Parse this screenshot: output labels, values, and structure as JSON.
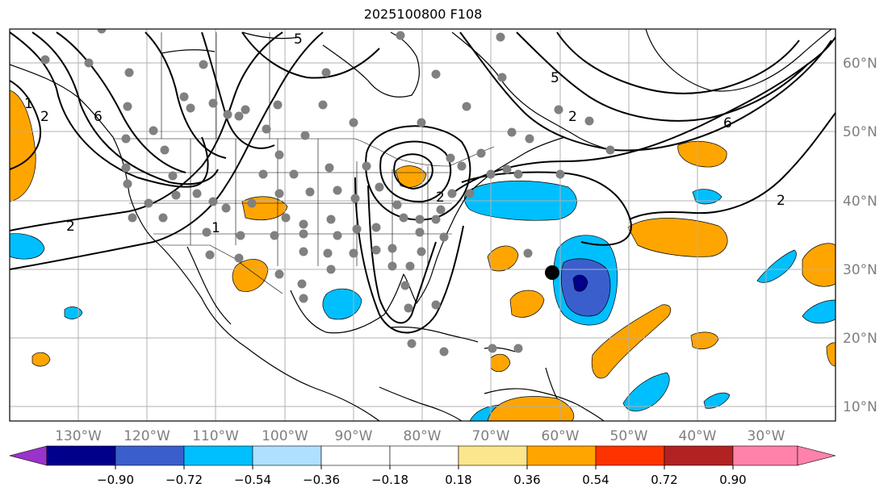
{
  "title": "2025100800 F108",
  "map": {
    "lon_labels": [
      "130°W",
      "120°W",
      "110°W",
      "100°W",
      "90°W",
      "80°W",
      "70°W",
      "60°W",
      "50°W",
      "40°W",
      "30°W"
    ],
    "lat_labels": [
      "60°N",
      "50°N",
      "40°N",
      "30°N",
      "20°N",
      "10°N"
    ],
    "contour_labels": [
      "2",
      "1",
      "2",
      "1",
      "6",
      "5",
      "5",
      "6",
      "2",
      "2",
      "2"
    ],
    "storm_marker": {
      "lon": -60,
      "lat": 29.5
    }
  },
  "colorbar": {
    "ticks": [
      "−0.90",
      "−0.72",
      "−0.54",
      "−0.36",
      "−0.18",
      "0.18",
      "0.36",
      "0.54",
      "0.72",
      "0.90"
    ],
    "colors": [
      "#9933cc",
      "#00008b",
      "#3a5fcd",
      "#00bfff",
      "#afe0ff",
      "#ffffff",
      "#fce68c",
      "#ffa500",
      "#ff3300",
      "#b22222",
      "#ff82ab"
    ]
  },
  "colors": {
    "orange": "#ffa500",
    "sky": "#00bfff",
    "royal": "#3a5fcd",
    "navy": "#00008b",
    "obs_dot": "#808080"
  }
}
